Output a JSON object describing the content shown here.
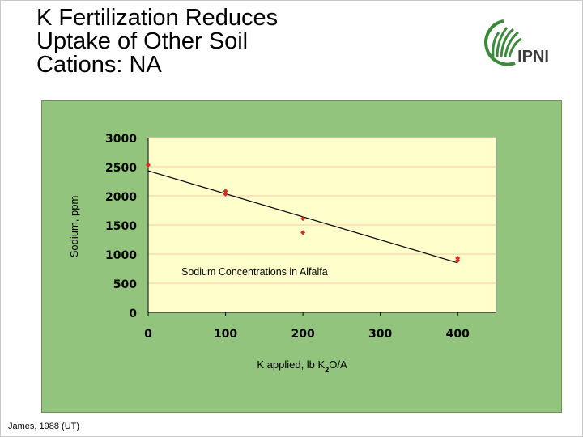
{
  "slide": {
    "title_lines": [
      "K Fertilization Reduces",
      "Uptake of Other Soil",
      "Cations: NA"
    ],
    "citation": "James, 1988 (UT)",
    "logo_text": "IPNI"
  },
  "colors": {
    "chart_background": "#93c47d",
    "plot_area": "#ffffcc",
    "gridline": "#f2c9a0",
    "marker": "#e3261c",
    "trendline": "#000000",
    "logo_green": "#3a8a3a"
  },
  "chart_data": {
    "type": "scatter",
    "title": "",
    "annotation": "Sodium Concentrations in Alfalfa",
    "xlabel_parts": {
      "pre": "K applied, lb K",
      "sub": "2",
      "post": "O/A"
    },
    "ylabel": "Sodium, ppm",
    "xlim": [
      0,
      450
    ],
    "ylim": [
      0,
      3000
    ],
    "xticks": [
      0,
      100,
      200,
      300,
      400
    ],
    "yticks": [
      0,
      500,
      1000,
      1500,
      2000,
      2500,
      3000
    ],
    "grid": true,
    "points": [
      {
        "x": 0,
        "y": 2530
      },
      {
        "x": 100,
        "y": 2080
      },
      {
        "x": 100,
        "y": 2030
      },
      {
        "x": 200,
        "y": 1610
      },
      {
        "x": 200,
        "y": 1370
      },
      {
        "x": 400,
        "y": 930
      },
      {
        "x": 400,
        "y": 890
      }
    ],
    "trendline": {
      "x": [
        0,
        400
      ],
      "y": [
        2430,
        850
      ]
    }
  }
}
